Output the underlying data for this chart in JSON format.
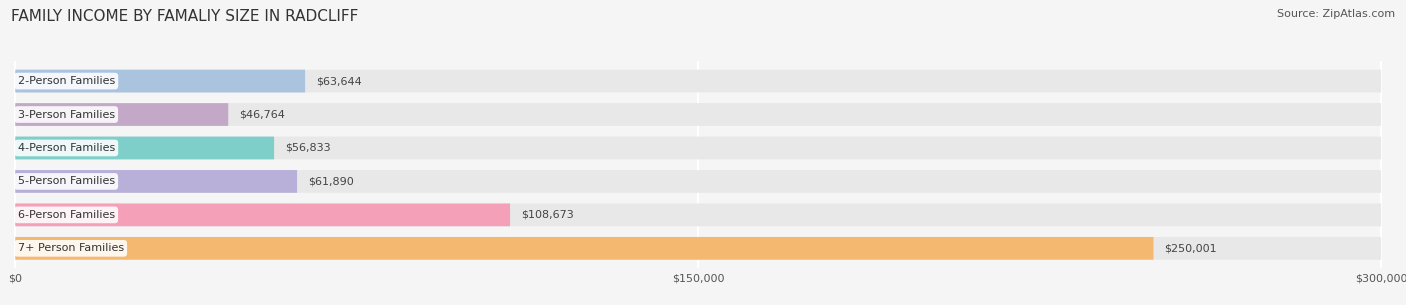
{
  "title": "FAMILY INCOME BY FAMALIY SIZE IN RADCLIFF",
  "source": "Source: ZipAtlas.com",
  "categories": [
    "2-Person Families",
    "3-Person Families",
    "4-Person Families",
    "5-Person Families",
    "6-Person Families",
    "7+ Person Families"
  ],
  "values": [
    63644,
    46764,
    56833,
    61890,
    108673,
    250001
  ],
  "labels": [
    "$63,644",
    "$46,764",
    "$56,833",
    "$61,890",
    "$108,673",
    "$250,001"
  ],
  "bar_colors": [
    "#aac4e0",
    "#c4a8c8",
    "#7ececa",
    "#b8b0d8",
    "#f4a0b8",
    "#f4b870"
  ],
  "bar_bg_color": "#e8e8e8",
  "xmax": 300000,
  "xticks": [
    0,
    150000,
    300000
  ],
  "xticklabels": [
    "$0",
    "$150,000",
    "$300,000"
  ],
  "title_fontsize": 11,
  "source_fontsize": 8,
  "label_fontsize": 8,
  "category_fontsize": 8,
  "background_color": "#f5f5f5"
}
